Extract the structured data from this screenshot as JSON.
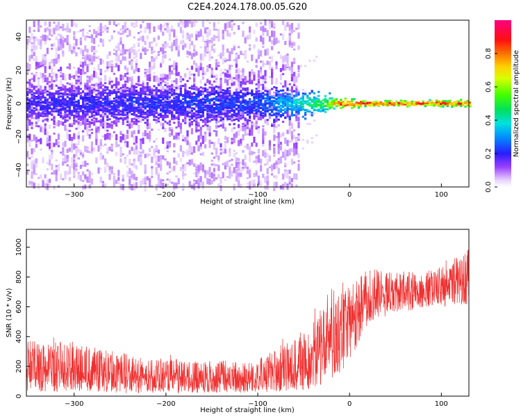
{
  "title": "C2E4.2024.178.00.05.G20",
  "chart_data": [
    {
      "type": "heatmap",
      "xlabel": "Height of straight line (km)",
      "ylabel": "Frequency (Hz)",
      "xlim": [
        -352,
        130
      ],
      "ylim": [
        -50,
        50
      ],
      "xticks": [
        -300,
        -200,
        -100,
        0,
        100
      ],
      "yticks": [
        -40,
        -20,
        0,
        20,
        40
      ],
      "grid": false,
      "colorbar": {
        "label": "Normalized spectral amplitude",
        "range": [
          0.0,
          1.0
        ],
        "ticks": [
          0.0,
          0.2,
          0.4,
          0.6,
          0.8
        ],
        "colormap": "rainbow (white-violet-blue-cyan-green-yellow-red-magenta)"
      },
      "description_values": {
        "band_center_hz": 0,
        "band_halfwidth_hz_at_x": [
          {
            "x": -340,
            "halfwidth": 10
          },
          {
            "x": -150,
            "halfwidth": 10
          },
          {
            "x": -80,
            "halfwidth": 8
          },
          {
            "x": -40,
            "halfwidth": 5
          },
          {
            "x": -10,
            "halfwidth": 2.5
          },
          {
            "x": 30,
            "halfwidth": 1.2
          },
          {
            "x": 125,
            "halfwidth": 1.5
          }
        ],
        "band_peak_amplitude_at_x": [
          {
            "x": -340,
            "amp": 0.2
          },
          {
            "x": -100,
            "amp": 0.25
          },
          {
            "x": -60,
            "amp": 0.4
          },
          {
            "x": -30,
            "amp": 0.55
          },
          {
            "x": -10,
            "amp": 0.85
          },
          {
            "x": 20,
            "amp": 0.9
          },
          {
            "x": 125,
            "amp": 0.85
          }
        ],
        "scatter_extent_hz": 50,
        "scatter_end_x": -55
      }
    },
    {
      "type": "line",
      "series_color": "#f03030",
      "xlabel": "Height of straight line (km)",
      "ylabel": "SNR (10 * v/v)",
      "xlim": [
        -352,
        130
      ],
      "ylim": [
        0,
        1120
      ],
      "xticks": [
        -300,
        -200,
        -100,
        0,
        100
      ],
      "yticks": [
        0,
        200,
        400,
        600,
        800,
        1000
      ],
      "grid": false,
      "envelope": [
        {
          "x": -352,
          "low": 30,
          "mean": 190,
          "high": 420
        },
        {
          "x": -300,
          "low": 30,
          "mean": 170,
          "high": 400
        },
        {
          "x": -250,
          "low": 20,
          "mean": 140,
          "high": 330
        },
        {
          "x": -200,
          "low": 20,
          "mean": 120,
          "high": 280
        },
        {
          "x": -150,
          "low": 20,
          "mean": 110,
          "high": 270
        },
        {
          "x": -100,
          "low": 20,
          "mean": 110,
          "high": 280
        },
        {
          "x": -75,
          "low": 30,
          "mean": 150,
          "high": 390
        },
        {
          "x": -60,
          "low": 30,
          "mean": 170,
          "high": 470
        },
        {
          "x": -50,
          "low": 40,
          "mean": 200,
          "high": 480
        },
        {
          "x": -40,
          "low": 50,
          "mean": 250,
          "high": 560
        },
        {
          "x": -30,
          "low": 80,
          "mean": 320,
          "high": 700
        },
        {
          "x": -20,
          "low": 100,
          "mean": 400,
          "high": 820
        },
        {
          "x": -10,
          "low": 150,
          "mean": 450,
          "high": 750
        },
        {
          "x": 0,
          "low": 250,
          "mean": 500,
          "high": 800
        },
        {
          "x": 10,
          "low": 350,
          "mean": 580,
          "high": 850
        },
        {
          "x": 25,
          "low": 500,
          "mean": 680,
          "high": 900
        },
        {
          "x": 50,
          "low": 560,
          "mean": 700,
          "high": 860
        },
        {
          "x": 75,
          "low": 580,
          "mean": 720,
          "high": 870
        },
        {
          "x": 100,
          "low": 600,
          "mean": 740,
          "high": 900
        },
        {
          "x": 130,
          "low": 620,
          "mean": 780,
          "high": 1050
        }
      ]
    }
  ]
}
